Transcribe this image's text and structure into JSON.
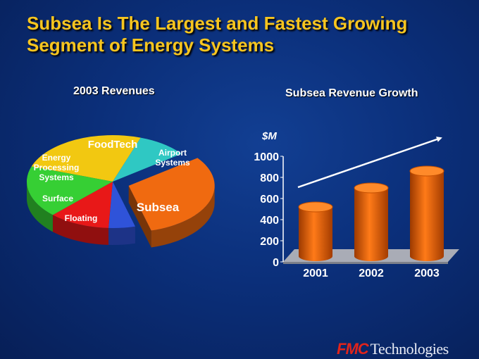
{
  "title": "Subsea Is The Largest and Fastest Growing Segment of Energy Systems",
  "brand": {
    "mark": "FMC",
    "word": "Technologies",
    "mark_color": "#e2241b"
  },
  "chart_data": [
    {
      "type": "pie",
      "title": "2003 Revenues",
      "slices": [
        {
          "label": "FoodTech",
          "value": 25,
          "color": "#f2c811"
        },
        {
          "label": "Airport Systems",
          "value": 9.5,
          "color": "#2fc8c3"
        },
        {
          "label": "Subsea",
          "value": 31,
          "color": "#f06a10",
          "exploded": true
        },
        {
          "label": "Floating",
          "value": 5,
          "color": "#2f53d9"
        },
        {
          "label": "Surface",
          "value": 11.5,
          "color": "#e81818"
        },
        {
          "label": "Energy Processing Systems",
          "value": 18,
          "color": "#36cf34"
        }
      ]
    },
    {
      "type": "bar",
      "title": "Subsea Revenue Growth",
      "ylabel": "$M",
      "categories": [
        "2001",
        "2002",
        "2003"
      ],
      "values": [
        520,
        700,
        860
      ],
      "ylim": [
        0,
        1000
      ],
      "yticks": [
        "0",
        "200",
        "400",
        "600",
        "800",
        "1000"
      ],
      "bar_color": "#f06a10",
      "trend_arrow": true
    }
  ]
}
